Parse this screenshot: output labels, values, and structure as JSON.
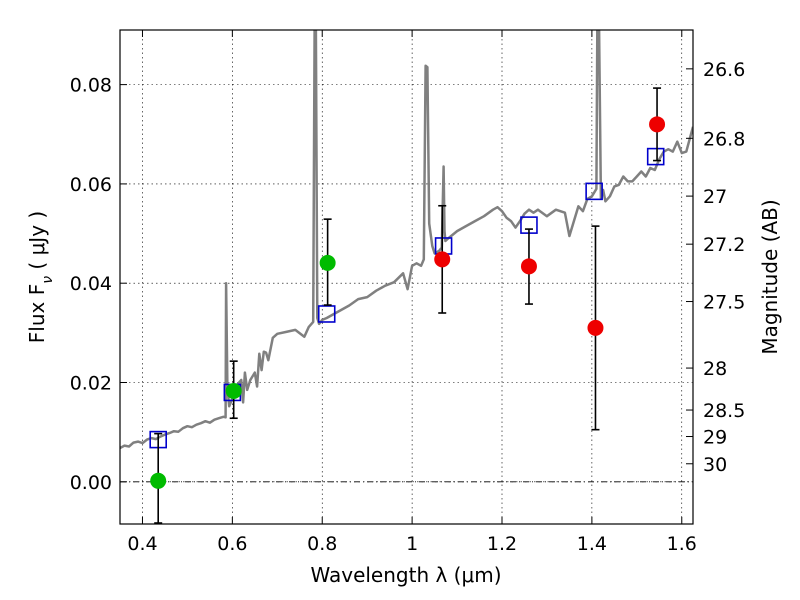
{
  "chart_data": {
    "type": "scatter",
    "xlabel": "Wavelength  λ (μm)",
    "ylabel": "Flux  F",
    "ylabel_sub": "ν",
    "ylabel_unit": "  ( μJy )",
    "y2label": "Magnitude (AB)",
    "xlim": [
      0.35,
      1.625
    ],
    "ylim": [
      -0.0085,
      0.091
    ],
    "x_ticks": [
      0.4,
      0.6,
      0.8,
      1.0,
      1.2,
      1.4,
      1.6
    ],
    "x_tick_labels": [
      "0.4",
      "0.6",
      "0.8",
      "1",
      "1.2",
      "1.4",
      "1.6"
    ],
    "y_ticks": [
      0.0,
      0.02,
      0.04,
      0.06,
      0.08
    ],
    "y_tick_labels": [
      "0.00",
      "0.02",
      "0.04",
      "0.06",
      "0.08"
    ],
    "mag_ticks": [
      26.6,
      26.8,
      27.0,
      27.2,
      27.5,
      28.0,
      28.5,
      29.0,
      30.0
    ],
    "mag_tick_labels": [
      "26.6",
      "26.8",
      "27",
      "27.2",
      "27.5",
      "28",
      "28.5",
      "29",
      "30"
    ],
    "grid": true,
    "zero_line": true,
    "colors": {
      "model": "#808080",
      "model_points": "#0000cc",
      "obs_green": "#00bb00",
      "obs_red": "#ee0000",
      "errorbar": "#000000"
    },
    "model_spectrum": {
      "x": [
        0.35,
        0.36,
        0.37,
        0.38,
        0.39,
        0.4,
        0.41,
        0.42,
        0.43,
        0.44,
        0.45,
        0.46,
        0.47,
        0.48,
        0.49,
        0.5,
        0.51,
        0.52,
        0.53,
        0.54,
        0.55,
        0.56,
        0.57,
        0.58,
        0.585,
        0.586,
        0.589,
        0.593,
        0.6,
        0.61,
        0.62,
        0.624,
        0.628,
        0.633,
        0.64,
        0.65,
        0.655,
        0.66,
        0.665,
        0.67,
        0.675,
        0.68,
        0.69,
        0.7,
        0.72,
        0.74,
        0.76,
        0.77,
        0.78,
        0.783,
        0.786,
        0.789,
        0.793,
        0.8,
        0.81,
        0.82,
        0.84,
        0.86,
        0.88,
        0.9,
        0.92,
        0.94,
        0.96,
        0.98,
        0.99,
        1.0,
        1.01,
        1.02,
        1.026,
        1.03,
        1.034,
        1.038,
        1.045,
        1.05,
        1.06,
        1.066,
        1.07,
        1.072,
        1.074,
        1.08,
        1.1,
        1.12,
        1.14,
        1.16,
        1.18,
        1.19,
        1.2,
        1.21,
        1.22,
        1.23,
        1.24,
        1.25,
        1.26,
        1.27,
        1.28,
        1.3,
        1.32,
        1.34,
        1.35,
        1.36,
        1.37,
        1.38,
        1.39,
        1.4,
        1.41,
        1.412,
        1.416,
        1.42,
        1.425,
        1.43,
        1.44,
        1.45,
        1.46,
        1.47,
        1.48,
        1.49,
        1.5,
        1.51,
        1.52,
        1.53,
        1.54,
        1.55,
        1.56,
        1.57,
        1.58,
        1.59,
        1.6,
        1.61,
        1.625
      ],
      "y": [
        0.0068,
        0.0073,
        0.0071,
        0.0079,
        0.0081,
        0.0078,
        0.0085,
        0.0088,
        0.0086,
        0.0091,
        0.0095,
        0.0098,
        0.0102,
        0.0101,
        0.0108,
        0.0112,
        0.011,
        0.0115,
        0.0118,
        0.0122,
        0.0119,
        0.0125,
        0.0128,
        0.0131,
        0.013,
        0.04,
        0.019,
        0.0152,
        0.0168,
        0.0195,
        0.0205,
        0.016,
        0.022,
        0.0185,
        0.0205,
        0.022,
        0.0192,
        0.0258,
        0.0225,
        0.0262,
        0.026,
        0.0245,
        0.029,
        0.0298,
        0.0302,
        0.0306,
        0.0292,
        0.0312,
        0.0322,
        0.091,
        0.091,
        0.033,
        0.0318,
        0.0326,
        0.033,
        0.0335,
        0.0345,
        0.0355,
        0.0368,
        0.0372,
        0.0385,
        0.0395,
        0.0402,
        0.042,
        0.0388,
        0.0435,
        0.044,
        0.0435,
        0.0448,
        0.0838,
        0.0835,
        0.052,
        0.0475,
        0.046,
        0.0465,
        0.0472,
        0.0635,
        0.0505,
        0.0485,
        0.049,
        0.0505,
        0.0515,
        0.0525,
        0.0535,
        0.0548,
        0.0553,
        0.0545,
        0.0532,
        0.0525,
        0.0512,
        0.0525,
        0.054,
        0.0548,
        0.0542,
        0.0548,
        0.0535,
        0.0548,
        0.0542,
        0.0495,
        0.0525,
        0.0555,
        0.0545,
        0.057,
        0.0575,
        0.059,
        0.091,
        0.091,
        0.0572,
        0.0588,
        0.0565,
        0.0575,
        0.0595,
        0.0598,
        0.0615,
        0.0605,
        0.0605,
        0.0615,
        0.0625,
        0.0615,
        0.0632,
        0.0628,
        0.065,
        0.0665,
        0.067,
        0.0665,
        0.0685,
        0.0662,
        0.0665,
        0.0715
      ]
    },
    "model_points": {
      "x": [
        0.435,
        0.6,
        0.81,
        1.07,
        1.26,
        1.405,
        1.542
      ],
      "y": [
        0.0085,
        0.018,
        0.0338,
        0.0475,
        0.0517,
        0.0585,
        0.0655
      ]
    },
    "observed": [
      {
        "x": 0.435,
        "y": 0.0002,
        "yerr_low": 0.0085,
        "yerr_high": 0.0095,
        "color": "green"
      },
      {
        "x": 0.603,
        "y": 0.0183,
        "yerr_low": 0.0055,
        "yerr_high": 0.006,
        "color": "green"
      },
      {
        "x": 0.812,
        "y": 0.0441,
        "yerr_low": 0.0085,
        "yerr_high": 0.0088,
        "color": "green"
      },
      {
        "x": 1.067,
        "y": 0.0448,
        "yerr_low": 0.0108,
        "yerr_high": 0.0108,
        "color": "red"
      },
      {
        "x": 1.26,
        "y": 0.0434,
        "yerr_low": 0.0076,
        "yerr_high": 0.0075,
        "color": "red"
      },
      {
        "x": 1.408,
        "y": 0.031,
        "yerr_low": 0.0205,
        "yerr_high": 0.0205,
        "color": "red"
      },
      {
        "x": 1.545,
        "y": 0.072,
        "yerr_low": 0.0073,
        "yerr_high": 0.0073,
        "color": "red"
      }
    ]
  }
}
